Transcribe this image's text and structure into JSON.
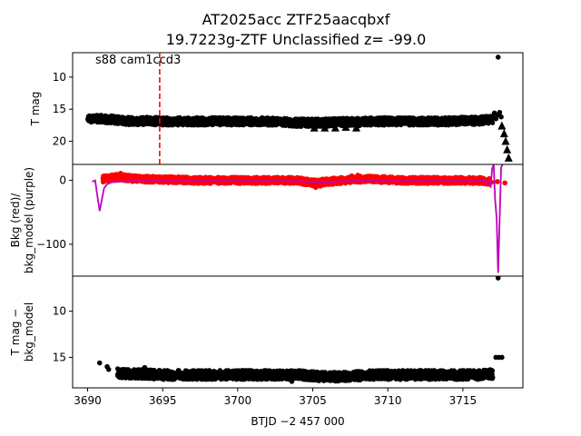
{
  "colors": {
    "flux": "#000000",
    "bkg": "#ff0000",
    "bkg_model": "#bf00bf",
    "marker_line": "#ff0000",
    "axes": "#000000"
  },
  "chart_data": {
    "title_line1": "AT2025acc  ZTF25aacqbxf",
    "title_line2": "19.7223g-ZTF Unclassified z= -99.0",
    "xlabel": "BTJD −2 457 000",
    "xlim": [
      3689,
      3719
    ],
    "x_ticks": [
      3690,
      3695,
      3700,
      3705,
      3710,
      3715
    ],
    "x_tick_labels": [
      "3690",
      "3695",
      "3700",
      "3705",
      "3710",
      "3715"
    ],
    "vline_x": 3694.8,
    "annotation": "s88 cam1ccd3",
    "panels": [
      {
        "id": "top",
        "type": "scatter",
        "ylabel": [
          "T mag"
        ],
        "ylim": [
          23.6,
          6.2
        ],
        "inverted": true,
        "y_ticks": [
          10,
          15,
          20
        ],
        "y_tick_labels": [
          "10",
          "15",
          "20"
        ],
        "series": [
          {
            "kind": "band",
            "x": [
              3690.0,
              3691.0,
              3692.0,
              3693.0,
              3694.0,
              3695.0,
              3696.0,
              3697.0,
              3698.0,
              3699.0,
              3700.0,
              3701.0,
              3702.0,
              3703.0,
              3704.0,
              3705.0,
              3706.0,
              3707.0,
              3708.0,
              3709.0,
              3710.0,
              3711.0,
              3712.0,
              3713.0,
              3714.0,
              3715.0,
              3716.0,
              3717.0
            ],
            "y": [
              16.6,
              16.5,
              16.7,
              16.9,
              16.8,
              16.9,
              16.9,
              16.9,
              16.9,
              16.9,
              16.9,
              16.9,
              16.9,
              17.0,
              17.1,
              17.1,
              17.1,
              17.0,
              17.0,
              16.9,
              16.9,
              16.9,
              16.9,
              16.9,
              16.9,
              16.8,
              16.8,
              16.6
            ],
            "spread": 0.6
          },
          {
            "kind": "points",
            "x": [
              3717.35
            ],
            "y": [
              6.9
            ]
          },
          {
            "kind": "points",
            "x": [
              3717.1,
              3717.2,
              3717.3,
              3717.45,
              3717.55
            ],
            "y": [
              15.6,
              16.5,
              15.9,
              15.5,
              16.2
            ]
          },
          {
            "kind": "triangles",
            "x": [
              3705.1,
              3705.8,
              3706.5,
              3707.2,
              3707.9,
              3717.6,
              3717.75,
              3717.85,
              3717.95,
              3718.05
            ],
            "y": [
              17.9,
              17.9,
              17.9,
              17.8,
              17.9,
              17.6,
              18.8,
              20.0,
              21.3,
              22.6
            ]
          }
        ]
      },
      {
        "id": "middle",
        "type": "line+scatter",
        "ylabel": [
          "Bkg (red)/",
          "bkg_model (purple)"
        ],
        "ylim": [
          -150,
          25
        ],
        "inverted": false,
        "y_ticks": [
          0,
          -100
        ],
        "y_tick_labels": [
          "0",
          "−100"
        ],
        "series": [
          {
            "kind": "band",
            "color": "bkg",
            "x": [
              3691.0,
              3692.0,
              3693.0,
              3694.0,
              3695.0,
              3696.0,
              3697.0,
              3698.0,
              3699.0,
              3700.0,
              3701.0,
              3702.0,
              3703.0,
              3704.0,
              3705.0,
              3706.0,
              3707.0,
              3708.0,
              3709.0,
              3710.0,
              3711.0,
              3712.0,
              3713.0,
              3714.0,
              3715.0,
              3716.0,
              3716.8
            ],
            "y": [
              2,
              5,
              3,
              2,
              1,
              1,
              0,
              0,
              0,
              0,
              0,
              0,
              0,
              0,
              -4,
              -2,
              0,
              2,
              2,
              1,
              0,
              0,
              0,
              0,
              0,
              0,
              -2
            ],
            "spread": 5
          },
          {
            "kind": "points",
            "color": "bkg",
            "x": [
              3692.2,
              3692.5,
              3705.2,
              3705.5,
              3707.6,
              3708.0,
              3716.9,
              3717.3,
              3717.8
            ],
            "y": [
              11,
              8,
              -11,
              -9,
              7,
              8,
              -3,
              -2,
              -4
            ]
          },
          {
            "kind": "line",
            "color": "bkg_model",
            "x": [
              3690.3,
              3690.5,
              3690.65,
              3690.8,
              3690.95,
              3691.1,
              3691.3,
              3691.6,
              3692.0,
              3693.0,
              3694.0,
              3695.0,
              3696.0,
              3697.0,
              3698.0,
              3699.0,
              3700.0,
              3701.0,
              3702.0,
              3703.0,
              3704.0,
              3705.0,
              3706.0,
              3707.0,
              3708.0,
              3709.0,
              3710.0,
              3711.0,
              3712.0,
              3713.0,
              3714.0,
              3715.0,
              3716.0,
              3716.5,
              3716.85,
              3716.95,
              3717.05,
              3717.15,
              3717.25,
              3717.35,
              3717.45,
              3717.55,
              3717.7,
              3717.85,
              3718.0
            ],
            "y": [
              -2,
              0,
              -25,
              -48,
              -30,
              -12,
              -6,
              -3,
              -2,
              -1,
              -1,
              -1,
              -1,
              -1,
              -1,
              -1,
              -1,
              -1,
              -1,
              -1,
              -1,
              -3,
              -3,
              -1,
              -1,
              -1,
              -1,
              -1,
              -1,
              -1,
              -1,
              -1,
              -1,
              0,
              -10,
              18,
              25,
              -30,
              -60,
              -145,
              -60,
              20,
              28,
              28,
              28
            ]
          }
        ]
      },
      {
        "id": "bottom",
        "type": "scatter",
        "ylabel": [
          "T mag −",
          "bkg_model"
        ],
        "ylim": [
          18.3,
          6.2
        ],
        "inverted": true,
        "y_ticks": [
          10,
          15
        ],
        "y_tick_labels": [
          "10",
          "15"
        ],
        "series": [
          {
            "kind": "band",
            "x": [
              3692.0,
              3693.0,
              3694.0,
              3695.0,
              3696.0,
              3697.0,
              3698.0,
              3699.0,
              3700.0,
              3701.0,
              3702.0,
              3703.0,
              3704.0,
              3705.0,
              3706.0,
              3707.0,
              3708.0,
              3709.0,
              3710.0,
              3711.0,
              3712.0,
              3713.0,
              3714.0,
              3715.0,
              3716.0,
              3717.0
            ],
            "y": [
              16.7,
              16.8,
              16.8,
              16.9,
              16.9,
              16.9,
              16.9,
              16.9,
              16.9,
              16.9,
              16.9,
              16.9,
              16.9,
              17.0,
              17.1,
              17.1,
              17.0,
              16.9,
              16.9,
              16.9,
              16.9,
              16.9,
              16.9,
              16.9,
              16.9,
              16.8
            ],
            "spread": 0.5
          },
          {
            "kind": "points",
            "x": [
              3690.8,
              3691.3,
              3691.4,
              3717.2,
              3717.4,
              3717.6,
              3717.35,
              3693.8,
              3703.6,
              3707.1
            ],
            "y": [
              15.6,
              16.0,
              16.3,
              15.0,
              15.0,
              15.0,
              6.4,
              16.1,
              17.6,
              17.5
            ]
          }
        ]
      }
    ]
  }
}
